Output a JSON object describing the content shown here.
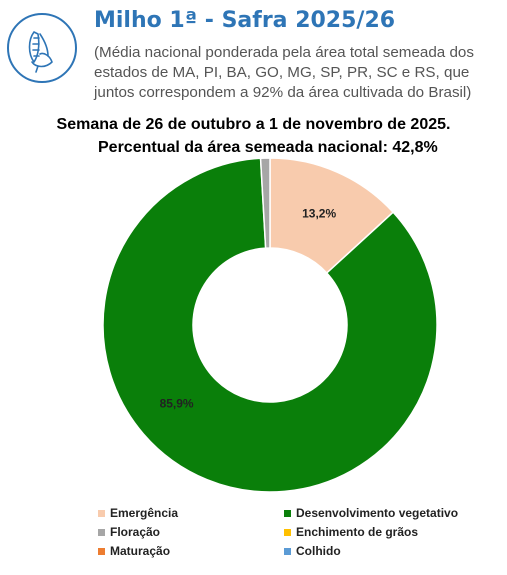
{
  "header": {
    "title": "Milho 1ª - Safra 2025/26",
    "subtitle": "(Média nacional ponderada pela área total semeada dos estados de MA, PI, BA, GO, MG, SP, PR, SC e RS, que juntos correspondem a 92% da área cultivada do Brasil)",
    "week": "Semana de 26 de outubro a 1 de novembro de 2025.",
    "percent_line": "Percentual da área semeada nacional: 42,8%"
  },
  "colors": {
    "title": "#2e75b6",
    "logo": "#2e75b6"
  },
  "icons": {
    "logo": "corn-icon"
  },
  "chart_data": {
    "type": "pie",
    "style": "donut",
    "values": [
      13.2,
      85.9,
      0.9,
      0,
      0,
      0
    ],
    "value_labels": [
      "13,2%",
      "85,9%",
      "",
      "",
      "",
      ""
    ],
    "legend": {
      "placement": "bottom",
      "items": [
        {
          "label": "Emergência",
          "color": "#f8cbad"
        },
        {
          "label": "Desenvolvimento vegetativo",
          "color": "#0a7f0a"
        },
        {
          "label": "Floração",
          "color": "#a6a6a6"
        },
        {
          "label": "Enchimento de grãos",
          "color": "#ffc000"
        },
        {
          "label": "Maturação",
          "color": "#ed7d31"
        },
        {
          "label": "Colhido",
          "color": "#5b9bd5"
        }
      ]
    }
  }
}
